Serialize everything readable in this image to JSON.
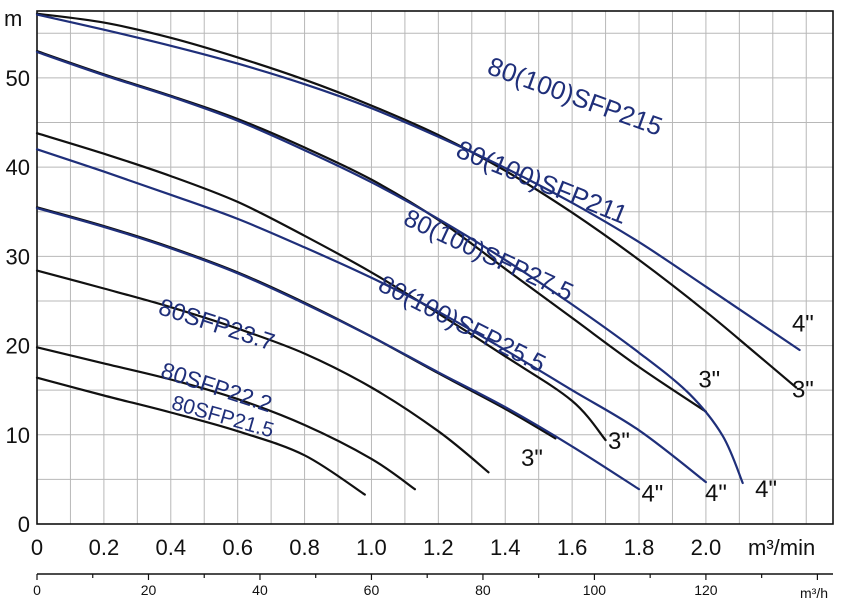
{
  "chart_data": {
    "type": "line",
    "title": "",
    "xlabel": "m³/min",
    "x2label": "m³/h",
    "ylabel": "m",
    "xlim": [
      0,
      2.38
    ],
    "ylim": [
      0,
      57.5
    ],
    "x2lim": [
      0,
      142.8
    ],
    "grid": true,
    "x_ticks": [
      0,
      0.2,
      0.4,
      0.6,
      0.8,
      1.0,
      1.2,
      1.4,
      1.6,
      1.8,
      2.0
    ],
    "x_tick_labels": [
      "0",
      "0.2",
      "0.4",
      "0.6",
      "0.8",
      "1.0",
      "1.2",
      "1.4",
      "1.6",
      "1.8",
      "2.0"
    ],
    "x2_ticks": [
      0,
      20,
      40,
      60,
      80,
      100,
      120
    ],
    "x2_tick_labels": [
      "0",
      "20",
      "40",
      "60",
      "80",
      "100",
      "120"
    ],
    "y_ticks": [
      0,
      10,
      20,
      30,
      40,
      50
    ],
    "y_tick_labels": [
      "0",
      "10",
      "20",
      "30",
      "40",
      "50"
    ],
    "colors": {
      "blue": "#1f2f7a",
      "black": "#111111",
      "grid": "#b8b8b8"
    },
    "series": [
      {
        "name": "80(100)SFP215",
        "size": "3\"",
        "color": "#111111",
        "x": [
          0,
          0.2,
          0.4,
          0.6,
          0.8,
          1.0,
          1.2,
          1.4,
          1.6,
          1.8,
          2.0,
          2.15,
          2.27
        ],
        "y": [
          57.2,
          56.2,
          54.5,
          52.3,
          49.8,
          46.9,
          43.6,
          39.6,
          34.9,
          29.6,
          23.8,
          19.1,
          15.3
        ]
      },
      {
        "name": "",
        "size": "4\"",
        "color": "#1f2f7a",
        "x": [
          0,
          0.2,
          0.4,
          0.6,
          0.8,
          1.0,
          1.2,
          1.4,
          1.6,
          1.8,
          2.0,
          2.15,
          2.28
        ],
        "y": [
          57.1,
          55.4,
          53.6,
          51.6,
          49.3,
          46.6,
          43.4,
          39.9,
          36.0,
          31.6,
          26.6,
          22.8,
          19.5
        ]
      },
      {
        "name": "80(100)SFP211",
        "size": "3\"",
        "color": "#111111",
        "x": [
          0,
          0.2,
          0.4,
          0.6,
          0.8,
          1.0,
          1.2,
          1.4,
          1.6,
          1.8,
          2.0
        ],
        "y": [
          53.0,
          50.4,
          48.0,
          45.4,
          42.2,
          38.6,
          34.1,
          28.6,
          23.1,
          17.6,
          12.6
        ]
      },
      {
        "name": "",
        "size": "4\"",
        "color": "#1f2f7a",
        "x": [
          0,
          0.2,
          0.4,
          0.6,
          0.8,
          1.0,
          1.2,
          1.4,
          1.6,
          1.8,
          1.95,
          2.05,
          2.11
        ],
        "y": [
          52.9,
          50.3,
          47.9,
          45.2,
          41.9,
          38.3,
          34.2,
          29.6,
          24.6,
          19.2,
          14.6,
          9.9,
          4.6
        ]
      },
      {
        "name": "80(100)SFP27.5",
        "size": "3\"",
        "color": "#111111",
        "x": [
          0,
          0.2,
          0.4,
          0.6,
          0.8,
          1.0,
          1.2,
          1.4,
          1.6,
          1.7
        ],
        "y": [
          43.8,
          41.5,
          39.0,
          36.1,
          32.3,
          28.2,
          23.6,
          18.8,
          13.8,
          9.4
        ]
      },
      {
        "name": "",
        "size": "4\"",
        "color": "#1f2f7a",
        "x": [
          0,
          0.2,
          0.4,
          0.6,
          0.8,
          1.0,
          1.2,
          1.4,
          1.6,
          1.8,
          2.0
        ],
        "y": [
          42.0,
          39.5,
          36.9,
          34.2,
          31.0,
          27.6,
          23.8,
          19.5,
          15.0,
          10.5,
          4.7
        ]
      },
      {
        "name": "80(100)SFP25.5",
        "size": "3\"",
        "color": "#111111",
        "x": [
          0,
          0.2,
          0.4,
          0.6,
          0.8,
          1.0,
          1.2,
          1.4,
          1.55
        ],
        "y": [
          35.5,
          33.4,
          31.0,
          28.2,
          24.8,
          21.0,
          16.9,
          12.9,
          9.6
        ]
      },
      {
        "name": "",
        "size": "4\"",
        "color": "#1f2f7a",
        "x": [
          0,
          0.2,
          0.4,
          0.6,
          0.8,
          1.0,
          1.2,
          1.4,
          1.6,
          1.8
        ],
        "y": [
          35.4,
          33.3,
          30.9,
          28.1,
          24.7,
          21.0,
          17.0,
          13.1,
          8.7,
          3.9
        ]
      },
      {
        "name": "80SFP23.7",
        "color": "#111111",
        "x": [
          0,
          0.2,
          0.4,
          0.6,
          0.8,
          1.0,
          1.2,
          1.35
        ],
        "y": [
          28.4,
          26.4,
          24.3,
          21.9,
          19.1,
          15.3,
          10.4,
          5.8
        ]
      },
      {
        "name": "80SFP22.2",
        "color": "#111111",
        "x": [
          0,
          0.2,
          0.4,
          0.6,
          0.8,
          1.0,
          1.13
        ],
        "y": [
          19.8,
          18.0,
          16.2,
          14.0,
          11.1,
          7.3,
          3.9
        ]
      },
      {
        "name": "80SFP21.5",
        "color": "#111111",
        "x": [
          0,
          0.2,
          0.4,
          0.6,
          0.8,
          0.98
        ],
        "y": [
          16.4,
          14.4,
          12.5,
          10.4,
          7.7,
          3.3
        ]
      }
    ],
    "annotations": [
      {
        "text": "80(100)SFP215",
        "x": 1.6,
        "y": 47.0,
        "angle": 20,
        "size": 26,
        "cls": "curve"
      },
      {
        "text": "80(100)SFP211",
        "x": 1.5,
        "y": 37.4,
        "angle": 22,
        "size": 26,
        "cls": "curve"
      },
      {
        "text": "80(100)SFP27.5",
        "x": 1.34,
        "y": 29.3,
        "angle": 25,
        "size": 25,
        "cls": "curve"
      },
      {
        "text": "80(100)SFP25.5",
        "x": 1.26,
        "y": 21.6,
        "angle": 27,
        "size": 25,
        "cls": "curve"
      },
      {
        "text": "80SFP23.7",
        "x": 0.53,
        "y": 21.5,
        "angle": 18,
        "size": 24,
        "cls": "curve"
      },
      {
        "text": "80SFP22.2",
        "x": 0.53,
        "y": 14.5,
        "angle": 18,
        "size": 23,
        "cls": "curve"
      },
      {
        "text": "80SFP21.5",
        "x": 0.55,
        "y": 11.3,
        "angle": 16,
        "size": 21,
        "cls": "curve"
      },
      {
        "text": "4\"",
        "x": 2.29,
        "y": 21.6,
        "angle": 0,
        "size": 24,
        "cls": "size"
      },
      {
        "text": "3\"",
        "x": 2.29,
        "y": 14.2,
        "angle": 0,
        "size": 24,
        "cls": "size"
      },
      {
        "text": "3\"",
        "x": 2.01,
        "y": 15.3,
        "angle": 0,
        "size": 24,
        "cls": "size"
      },
      {
        "text": "3\"",
        "x": 1.74,
        "y": 8.4,
        "angle": 0,
        "size": 24,
        "cls": "size"
      },
      {
        "text": "3\"",
        "x": 1.48,
        "y": 6.5,
        "angle": 0,
        "size": 24,
        "cls": "size"
      },
      {
        "text": "4\"",
        "x": 1.84,
        "y": 2.5,
        "angle": 0,
        "size": 24,
        "cls": "size"
      },
      {
        "text": "4\"",
        "x": 2.03,
        "y": 2.6,
        "angle": 0,
        "size": 24,
        "cls": "size"
      },
      {
        "text": "4\"",
        "x": 2.18,
        "y": 3.0,
        "angle": 0,
        "size": 24,
        "cls": "size"
      }
    ]
  }
}
